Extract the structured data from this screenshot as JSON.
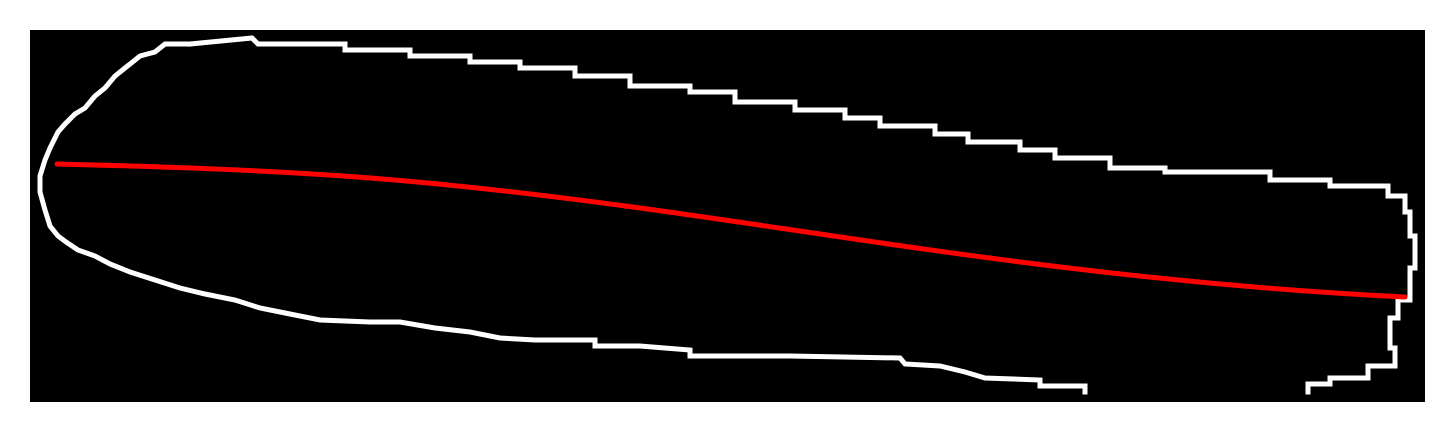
{
  "figure": {
    "background_color": "#000000",
    "page_color": "#ffffff",
    "outline_color": "#ffffff",
    "centerline_color": "#ff0000"
  }
}
